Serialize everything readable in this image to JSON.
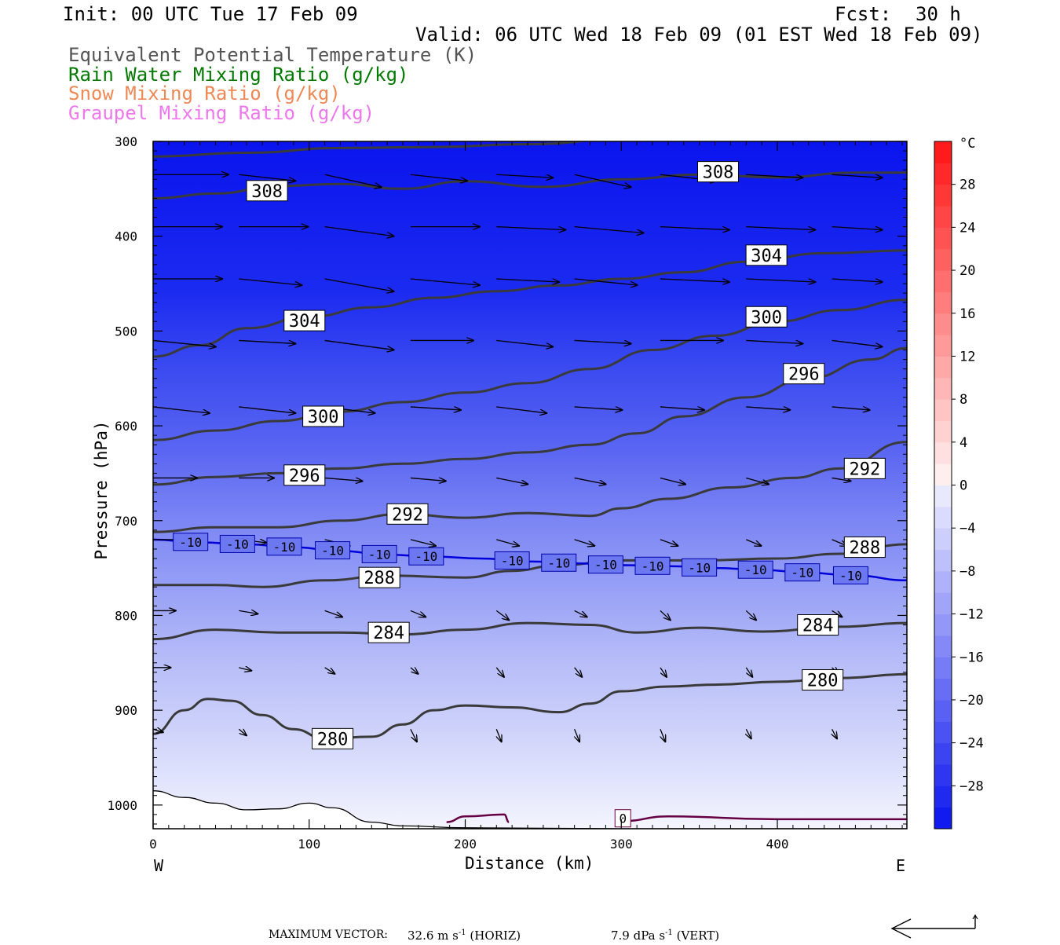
{
  "header": {
    "init": "Init: 00 UTC Tue 17 Feb 09",
    "fcst_label": "Fcst:",
    "fcst_value": "30 h",
    "valid": "Valid: 06 UTC Wed 18 Feb 09 (01 EST Wed 18 Feb 09)"
  },
  "legend": {
    "entries": [
      {
        "label": "Equivalent Potential Temperature (K)",
        "color": "#555555"
      },
      {
        "label": "Rain Water Mixing Ratio (g/kg)",
        "color": "#007a00"
      },
      {
        "label": "Snow Mixing Ratio (g/kg)",
        "color": "#ee8855"
      },
      {
        "label": "Graupel Mixing Ratio (g/kg)",
        "color": "#ee77ee"
      }
    ]
  },
  "footer": {
    "max_vector_label": "MAXIMUM VECTOR:",
    "horiz_value": "32.6 m s",
    "horiz_exp": "-1",
    "horiz_tag": "(HORIZ)",
    "vert_value": "7.9 dPa s",
    "vert_exp": "-1",
    "vert_tag": "(VERT)"
  },
  "chart_data": {
    "type": "cross-section",
    "xlabel": "Distance (km)",
    "ylabel": "Pressure (hPa)",
    "xlim": [
      0,
      483
    ],
    "ylim": [
      300,
      1025
    ],
    "x_ticks": [
      0,
      100,
      200,
      300,
      400
    ],
    "y_ticks": [
      300,
      400,
      500,
      600,
      700,
      800,
      900,
      1000
    ],
    "x_end_labels": {
      "left": "W",
      "right": "E"
    },
    "colorbar": {
      "unit": "°C",
      "tick_labels": [
        28,
        24,
        20,
        16,
        12,
        8,
        4,
        0,
        -4,
        -8,
        -12,
        -16,
        -20,
        -24,
        -28
      ],
      "range": [
        -32,
        32
      ]
    },
    "theta_e_contours": [
      {
        "value": 308,
        "points": [
          [
            0,
            360
          ],
          [
            40,
            355
          ],
          [
            80,
            347
          ],
          [
            120,
            345
          ],
          [
            160,
            350
          ],
          [
            200,
            342
          ],
          [
            250,
            348
          ],
          [
            300,
            340
          ],
          [
            350,
            335
          ],
          [
            400,
            338
          ],
          [
            450,
            333
          ],
          [
            483,
            333
          ]
        ]
      },
      {
        "value": 304,
        "points": [
          [
            0,
            527
          ],
          [
            30,
            515
          ],
          [
            60,
            497
          ],
          [
            100,
            485
          ],
          [
            140,
            475
          ],
          [
            180,
            465
          ],
          [
            220,
            458
          ],
          [
            260,
            452
          ],
          [
            300,
            445
          ],
          [
            340,
            438
          ],
          [
            380,
            427
          ],
          [
            430,
            418
          ],
          [
            483,
            415
          ]
        ]
      },
      {
        "value": 300,
        "points": [
          [
            0,
            615
          ],
          [
            40,
            605
          ],
          [
            80,
            595
          ],
          [
            120,
            585
          ],
          [
            160,
            575
          ],
          [
            200,
            565
          ],
          [
            240,
            555
          ],
          [
            280,
            540
          ],
          [
            320,
            520
          ],
          [
            360,
            505
          ],
          [
            400,
            490
          ],
          [
            440,
            478
          ],
          [
            483,
            467
          ]
        ]
      },
      {
        "value": 296,
        "points": [
          [
            0,
            662
          ],
          [
            40,
            654
          ],
          [
            80,
            650
          ],
          [
            120,
            645
          ],
          [
            160,
            640
          ],
          [
            200,
            635
          ],
          [
            240,
            628
          ],
          [
            280,
            620
          ],
          [
            310,
            608
          ],
          [
            340,
            590
          ],
          [
            380,
            570
          ],
          [
            420,
            550
          ],
          [
            460,
            530
          ],
          [
            483,
            518
          ]
        ]
      },
      {
        "value": 292,
        "points": [
          [
            0,
            712
          ],
          [
            40,
            707
          ],
          [
            80,
            707
          ],
          [
            120,
            700
          ],
          [
            160,
            693
          ],
          [
            200,
            697
          ],
          [
            240,
            692
          ],
          [
            280,
            695
          ],
          [
            300,
            687
          ],
          [
            330,
            677
          ],
          [
            370,
            665
          ],
          [
            410,
            655
          ],
          [
            440,
            645
          ],
          [
            483,
            617
          ]
        ]
      },
      {
        "value": 288,
        "points": [
          [
            0,
            768
          ],
          [
            40,
            768
          ],
          [
            70,
            770
          ],
          [
            110,
            763
          ],
          [
            150,
            758
          ],
          [
            200,
            760
          ],
          [
            230,
            753
          ],
          [
            260,
            747
          ],
          [
            300,
            742
          ],
          [
            350,
            742
          ],
          [
            400,
            740
          ],
          [
            440,
            735
          ],
          [
            483,
            725
          ]
        ]
      },
      {
        "value": 284,
        "points": [
          [
            0,
            825
          ],
          [
            40,
            815
          ],
          [
            80,
            818
          ],
          [
            120,
            818
          ],
          [
            160,
            820
          ],
          [
            200,
            815
          ],
          [
            240,
            808
          ],
          [
            280,
            810
          ],
          [
            310,
            818
          ],
          [
            350,
            813
          ],
          [
            390,
            817
          ],
          [
            440,
            812
          ],
          [
            483,
            808
          ]
        ]
      },
      {
        "value": 280,
        "points": [
          [
            0,
            925
          ],
          [
            20,
            900
          ],
          [
            35,
            888
          ],
          [
            50,
            890
          ],
          [
            70,
            905
          ],
          [
            90,
            920
          ],
          [
            110,
            930
          ],
          [
            140,
            928
          ],
          [
            160,
            915
          ],
          [
            180,
            900
          ],
          [
            200,
            895
          ],
          [
            230,
            897
          ],
          [
            260,
            902
          ],
          [
            280,
            893
          ],
          [
            300,
            880
          ],
          [
            330,
            875
          ],
          [
            360,
            873
          ],
          [
            400,
            870
          ],
          [
            440,
            866
          ],
          [
            483,
            862
          ]
        ]
      }
    ],
    "theta_e_labels": [
      {
        "text": "308",
        "x": 73,
        "p": 352
      },
      {
        "text": "308",
        "x": 362,
        "p": 332
      },
      {
        "text": "304",
        "x": 97,
        "p": 489
      },
      {
        "text": "304",
        "x": 393,
        "p": 420
      },
      {
        "text": "300",
        "x": 109,
        "p": 590
      },
      {
        "text": "300",
        "x": 393,
        "p": 485
      },
      {
        "text": "296",
        "x": 97,
        "p": 652
      },
      {
        "text": "296",
        "x": 417,
        "p": 545
      },
      {
        "text": "292",
        "x": 163,
        "p": 693
      },
      {
        "text": "292",
        "x": 456,
        "p": 645
      },
      {
        "text": "288",
        "x": 145,
        "p": 760
      },
      {
        "text": "288",
        "x": 456,
        "p": 728
      },
      {
        "text": "284",
        "x": 151,
        "p": 818
      },
      {
        "text": "284",
        "x": 426,
        "p": 810
      },
      {
        "text": "280",
        "x": 115,
        "p": 930
      },
      {
        "text": "280",
        "x": 429,
        "p": 868
      }
    ],
    "temperature_minus10_contour": {
      "value": -10,
      "points": [
        [
          0,
          720
        ],
        [
          30,
          723
        ],
        [
          60,
          725
        ],
        [
          90,
          728
        ],
        [
          120,
          732
        ],
        [
          150,
          736
        ],
        [
          180,
          738
        ],
        [
          210,
          740
        ],
        [
          240,
          743
        ],
        [
          270,
          745
        ],
        [
          300,
          747
        ],
        [
          330,
          748
        ],
        [
          360,
          750
        ],
        [
          390,
          752
        ],
        [
          420,
          755
        ],
        [
          450,
          758
        ],
        [
          483,
          763
        ]
      ]
    },
    "temperature_zero_label": {
      "text": "0",
      "x": 301,
      "p": 1014
    },
    "temperature_labels": {
      "text": "-10",
      "x": [
        24,
        54,
        84,
        115,
        145,
        175,
        230,
        260,
        290,
        320,
        350,
        386,
        416,
        447
      ]
    },
    "wind_vectors": {
      "levels": [
        {
          "p": 335,
          "arrows": [
            [
              0,
              60,
              0
            ],
            [
              55,
              45,
              -2
            ],
            [
              110,
              45,
              -4
            ],
            [
              165,
              45,
              -2
            ],
            [
              220,
              45,
              -1
            ],
            [
              270,
              45,
              -4
            ],
            [
              325,
              45,
              -2
            ],
            [
              380,
              45,
              -1
            ],
            [
              435,
              40,
              -1
            ]
          ]
        },
        {
          "p": 390,
          "arrows": [
            [
              0,
              55,
              0
            ],
            [
              55,
              55,
              0
            ],
            [
              110,
              55,
              -3
            ],
            [
              165,
              55,
              0
            ],
            [
              220,
              55,
              -1
            ],
            [
              270,
              55,
              -2
            ],
            [
              325,
              55,
              -1
            ],
            [
              380,
              55,
              -1
            ],
            [
              435,
              40,
              -1
            ]
          ]
        },
        {
          "p": 445,
          "arrows": [
            [
              0,
              55,
              0
            ],
            [
              55,
              50,
              -2
            ],
            [
              110,
              55,
              -4
            ],
            [
              165,
              55,
              -2
            ],
            [
              220,
              50,
              -1
            ],
            [
              270,
              50,
              -2
            ],
            [
              325,
              55,
              -1
            ],
            [
              380,
              55,
              -1
            ],
            [
              435,
              40,
              -1
            ]
          ]
        },
        {
          "p": 510,
          "arrows": [
            [
              0,
              50,
              -2
            ],
            [
              55,
              45,
              -1
            ],
            [
              110,
              55,
              -3
            ],
            [
              165,
              50,
              0
            ],
            [
              220,
              45,
              -2
            ],
            [
              270,
              45,
              -1
            ],
            [
              325,
              50,
              0
            ],
            [
              380,
              45,
              -1
            ],
            [
              435,
              40,
              -2
            ]
          ]
        },
        {
          "p": 580,
          "arrows": [
            [
              0,
              45,
              -2
            ],
            [
              55,
              45,
              -2
            ],
            [
              110,
              40,
              -2
            ],
            [
              165,
              40,
              -1
            ],
            [
              220,
              40,
              -2
            ],
            [
              270,
              38,
              -1
            ],
            [
              325,
              35,
              -1
            ],
            [
              380,
              35,
              -1
            ],
            [
              435,
              30,
              -1
            ]
          ]
        },
        {
          "p": 655,
          "arrows": [
            [
              0,
              35,
              0
            ],
            [
              55,
              28,
              0
            ],
            [
              110,
              30,
              -1
            ],
            [
              165,
              28,
              -1
            ],
            [
              220,
              25,
              -2
            ],
            [
              270,
              25,
              -2
            ],
            [
              325,
              20,
              -2
            ],
            [
              380,
              18,
              -2
            ],
            [
              435,
              15,
              -1
            ]
          ]
        },
        {
          "p": 720,
          "arrows": [
            [
              0,
              22,
              0
            ],
            [
              55,
              22,
              -1
            ],
            [
              110,
              20,
              -2
            ],
            [
              165,
              20,
              -2
            ],
            [
              220,
              18,
              -2
            ],
            [
              270,
              16,
              -2
            ],
            [
              325,
              14,
              -2
            ],
            [
              380,
              12,
              -2
            ],
            [
              435,
              12,
              -2
            ]
          ]
        },
        {
          "p": 795,
          "arrows": [
            [
              0,
              18,
              0
            ],
            [
              55,
              15,
              -1
            ],
            [
              110,
              14,
              -2
            ],
            [
              165,
              12,
              -2
            ],
            [
              220,
              10,
              -3
            ],
            [
              270,
              10,
              -2
            ],
            [
              325,
              8,
              -3
            ],
            [
              380,
              8,
              -3
            ],
            [
              435,
              8,
              -2
            ]
          ]
        },
        {
          "p": 855,
          "arrows": [
            [
              0,
              14,
              0
            ],
            [
              55,
              10,
              -1
            ],
            [
              110,
              8,
              -2
            ],
            [
              165,
              6,
              -2
            ],
            [
              220,
              6,
              -3
            ],
            [
              270,
              6,
              -3
            ],
            [
              325,
              5,
              -3
            ],
            [
              380,
              5,
              -3
            ],
            [
              435,
              5,
              -2
            ]
          ]
        },
        {
          "p": 920,
          "arrows": [
            [
              0,
              8,
              -1
            ],
            [
              55,
              6,
              -2
            ],
            [
              110,
              5,
              -4
            ],
            [
              165,
              5,
              -4
            ],
            [
              220,
              4,
              -4
            ],
            [
              270,
              4,
              -4
            ],
            [
              325,
              4,
              -4
            ],
            [
              380,
              4,
              -3
            ],
            [
              435,
              4,
              -3
            ]
          ]
        }
      ]
    }
  }
}
